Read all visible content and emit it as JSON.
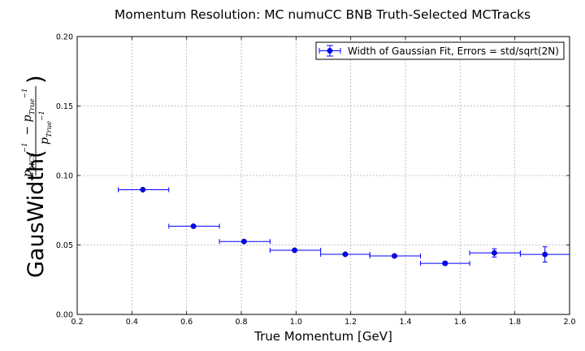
{
  "chart_data": {
    "type": "scatter",
    "title": "Momentum Resolution: MC numuCC BNB Truth-Selected MCTracks",
    "xlabel": "True Momentum [GeV]",
    "ylabel": {
      "prefix": "GausWidth(",
      "suffix": ")",
      "numerator": [
        "p",
        "MCS",
        "−1",
        " − ",
        "p",
        "True",
        "−1"
      ],
      "denominator": [
        "p",
        "True",
        "−1"
      ]
    },
    "xlim": [
      0.2,
      2.0
    ],
    "ylim": [
      0.0,
      0.2
    ],
    "xticks": [
      "0.2",
      "0.4",
      "0.6",
      "0.8",
      "1.0",
      "1.2",
      "1.4",
      "1.6",
      "1.8",
      "2.0"
    ],
    "yticks": [
      "0.00",
      "0.05",
      "0.10",
      "0.15",
      "0.20"
    ],
    "grid": true,
    "legend_position": "top-right",
    "series": [
      {
        "name": "Width of Gaussian Fit, Errors = std/sqrt(2N)",
        "color": "#0000ff",
        "x": [
          0.44,
          0.625,
          0.81,
          0.995,
          1.18,
          1.36,
          1.545,
          1.725,
          1.91
        ],
        "y": [
          0.0898,
          0.0635,
          0.0525,
          0.0462,
          0.0433,
          0.0421,
          0.0368,
          0.0443,
          0.0432
        ],
        "xerr_low": [
          0.35,
          0.535,
          0.72,
          0.905,
          1.09,
          1.27,
          1.455,
          1.635,
          1.82
        ],
        "xerr_high": [
          0.535,
          0.72,
          0.905,
          1.09,
          1.27,
          1.455,
          1.635,
          1.82,
          2.0
        ],
        "yerr": [
          0.0006,
          0.0008,
          0.0008,
          0.0008,
          0.0008,
          0.001,
          0.0012,
          0.003,
          0.0055
        ]
      }
    ]
  }
}
